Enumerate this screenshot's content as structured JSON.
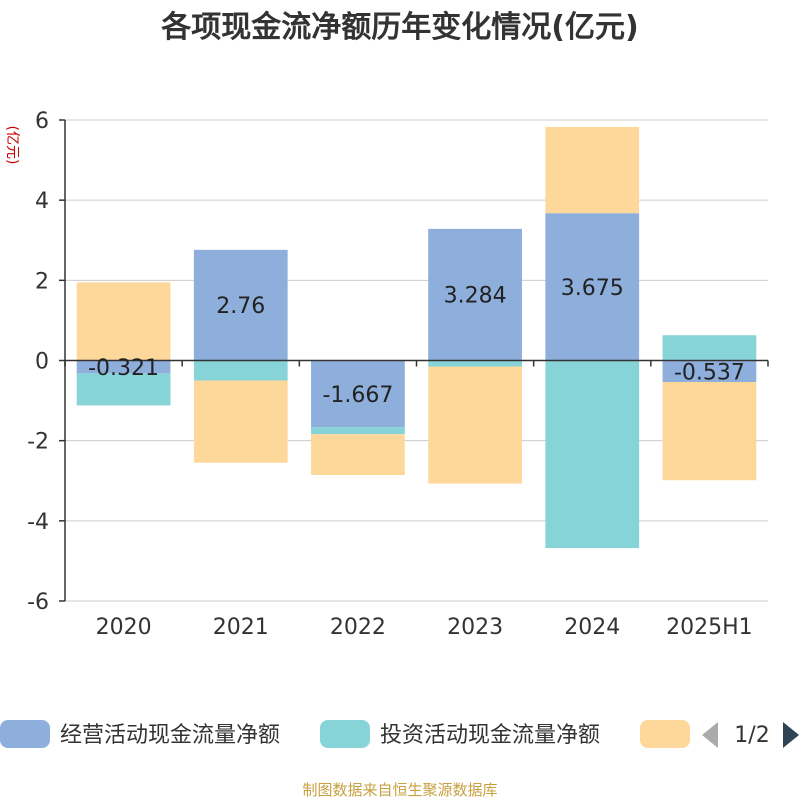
{
  "chart_data": {
    "type": "bar",
    "stacked": true,
    "title": "各项现金流净额历年变化情况(亿元)",
    "ylabel": "(亿元)",
    "ylim": [
      -6,
      6
    ],
    "yticks": [
      6,
      4,
      2,
      0,
      -2,
      -4,
      -6
    ],
    "grid": true,
    "categories": [
      "2020",
      "2021",
      "2022",
      "2023",
      "2024",
      "2025H1"
    ],
    "series": [
      {
        "name": "经营活动现金流量净额",
        "color": "#8eaedb",
        "values": [
          -0.321,
          2.76,
          -1.667,
          3.284,
          3.675,
          -0.537
        ],
        "show_labels": true
      },
      {
        "name": "投资活动现金流量净额",
        "color": "#87d4d8",
        "values": [
          -0.8,
          -0.5,
          -0.17,
          -0.15,
          -4.68,
          0.63
        ],
        "show_labels": false
      },
      {
        "name": "",
        "color": "#fdd89a",
        "values": [
          1.95,
          -2.05,
          -1.02,
          -2.92,
          2.15,
          -2.45
        ],
        "show_labels": false
      }
    ],
    "legend": {
      "placement": "bottom",
      "page": "1/2"
    }
  },
  "source_note": "制图数据来自恒生聚源数据库"
}
